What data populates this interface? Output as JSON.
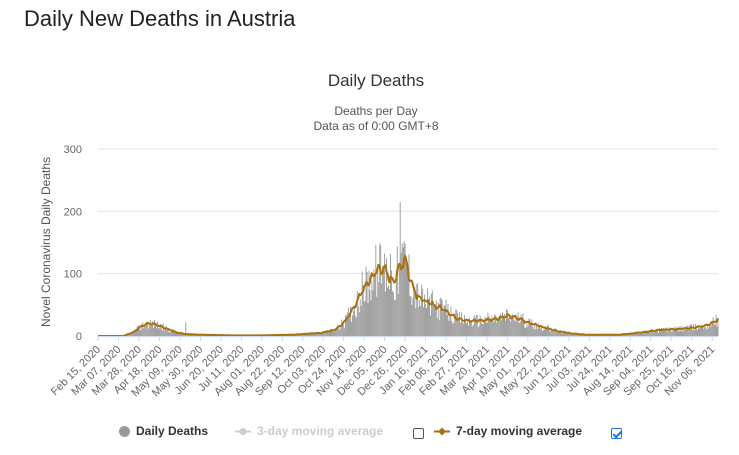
{
  "page": {
    "title": "Daily New Deaths in Austria"
  },
  "chart_data": {
    "type": "bar",
    "title": "Daily Deaths",
    "subtitle": "Deaths per Day",
    "subtitle2": "Data as of 0:00 GMT+8",
    "ylabel": "Novel Coronavirus Daily Deaths",
    "ylim": [
      0,
      300
    ],
    "yticks": [
      0,
      100,
      200,
      300
    ],
    "grid": true,
    "legend_position": "bottom",
    "x_start": "2020-02-15",
    "x_end": "2021-11-12",
    "xtick_labels": [
      "Feb 15, 2020",
      "Mar 07, 2020",
      "Mar 28, 2020",
      "Apr 18, 2020",
      "May 09, 2020",
      "May 30, 2020",
      "Jun 20, 2020",
      "Jul 11, 2020",
      "Aug 01, 2020",
      "Aug 22, 2020",
      "Sep 12, 2020",
      "Oct 03, 2020",
      "Oct 24, 2020",
      "Nov 14, 2020",
      "Dec 05, 2020",
      "Dec 26, 2020",
      "Jan 16, 2021",
      "Feb 06, 2021",
      "Feb 27, 2021",
      "Mar 20, 2021",
      "Apr 10, 2021",
      "May 01, 2021",
      "May 22, 2021",
      "Jun 12, 2021",
      "Jul 03, 2021",
      "Jul 24, 2021",
      "Aug 14, 2021",
      "Sep 04, 2021",
      "Sep 25, 2021",
      "Oct 16, 2021",
      "Nov 06, 2021"
    ],
    "trend_7day_anchors": [
      [
        "2020-02-15",
        0
      ],
      [
        "2020-03-12",
        0
      ],
      [
        "2020-03-22",
        6
      ],
      [
        "2020-04-01",
        17
      ],
      [
        "2020-04-08",
        21
      ],
      [
        "2020-04-15",
        18
      ],
      [
        "2020-04-25",
        12
      ],
      [
        "2020-05-05",
        6
      ],
      [
        "2020-05-15",
        3
      ],
      [
        "2020-06-01",
        2
      ],
      [
        "2020-07-01",
        1
      ],
      [
        "2020-08-01",
        1
      ],
      [
        "2020-09-01",
        2
      ],
      [
        "2020-09-20",
        4
      ],
      [
        "2020-10-01",
        5
      ],
      [
        "2020-10-15",
        10
      ],
      [
        "2020-10-25",
        22
      ],
      [
        "2020-11-05",
        50
      ],
      [
        "2020-11-12",
        72
      ],
      [
        "2020-11-20",
        90
      ],
      [
        "2020-11-27",
        105
      ],
      [
        "2020-12-03",
        110
      ],
      [
        "2020-12-08",
        98
      ],
      [
        "2020-12-14",
        88
      ],
      [
        "2020-12-20",
        108
      ],
      [
        "2020-12-26",
        126
      ],
      [
        "2020-12-31",
        92
      ],
      [
        "2021-01-07",
        66
      ],
      [
        "2021-01-15",
        56
      ],
      [
        "2021-01-24",
        50
      ],
      [
        "2021-02-05",
        42
      ],
      [
        "2021-02-15",
        30
      ],
      [
        "2021-03-01",
        24
      ],
      [
        "2021-03-15",
        25
      ],
      [
        "2021-03-30",
        28
      ],
      [
        "2021-04-10",
        32
      ],
      [
        "2021-04-22",
        28
      ],
      [
        "2021-05-01",
        22
      ],
      [
        "2021-05-15",
        15
      ],
      [
        "2021-05-31",
        8
      ],
      [
        "2021-06-15",
        4
      ],
      [
        "2021-07-01",
        2
      ],
      [
        "2021-07-15",
        2
      ],
      [
        "2021-08-01",
        2
      ],
      [
        "2021-08-15",
        4
      ],
      [
        "2021-09-01",
        7
      ],
      [
        "2021-09-15",
        10
      ],
      [
        "2021-10-01",
        11
      ],
      [
        "2021-10-15",
        13
      ],
      [
        "2021-10-25",
        15
      ],
      [
        "2021-11-05",
        20
      ],
      [
        "2021-11-12",
        26
      ]
    ],
    "spike_bars": [
      [
        "2020-12-21",
        215
      ],
      [
        "2020-12-24",
        142
      ],
      [
        "2020-12-11",
        132
      ],
      [
        "2020-12-07",
        125
      ],
      [
        "2020-11-28",
        115
      ],
      [
        "2021-04-15",
        35
      ],
      [
        "2021-11-10",
        34
      ],
      [
        "2020-05-15",
        22
      ]
    ],
    "series": [
      {
        "name": "Daily Deaths",
        "color": "#999999"
      },
      {
        "name": "3-day moving average",
        "color": "#bbbbbb",
        "visible": false
      },
      {
        "name": "7-day moving average",
        "color": "#a9700e",
        "visible": true
      }
    ]
  },
  "legend": {
    "daily_label": "Daily Deaths",
    "avg3_label": "3-day moving average",
    "avg7_label": "7-day moving average",
    "avg3_checked": false,
    "avg7_checked": true
  }
}
